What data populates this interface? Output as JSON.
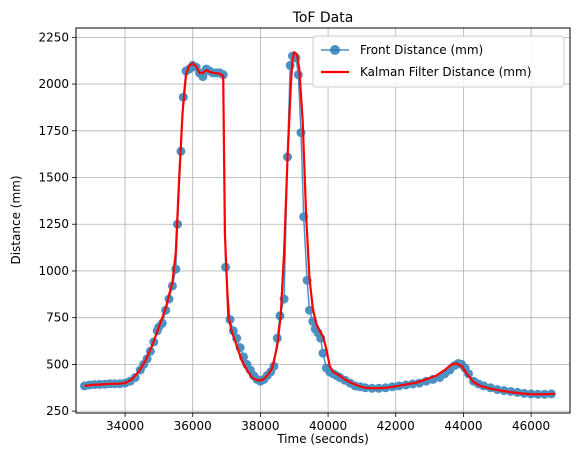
{
  "chart_data": {
    "type": "line",
    "title": "ToF Data",
    "xlabel": "Time (seconds)",
    "ylabel": "Distance (mm)",
    "xlim": [
      32550,
      47150
    ],
    "ylim": [
      240,
      2300
    ],
    "xticks": [
      34000,
      36000,
      38000,
      40000,
      42000,
      44000,
      46000
    ],
    "yticks": [
      250,
      500,
      750,
      1000,
      1250,
      1500,
      1750,
      2000,
      2250
    ],
    "grid": true,
    "legend_position": "top-right",
    "series": [
      {
        "name": "Front Distance (mm)",
        "style": "line-with-markers",
        "color": "#1f77b4",
        "x": [
          32800,
          32950,
          33100,
          33250,
          33400,
          33550,
          33700,
          33850,
          34000,
          34150,
          34300,
          34450,
          34550,
          34650,
          34750,
          34850,
          34950,
          35000,
          35100,
          35200,
          35300,
          35400,
          35500,
          35550,
          35650,
          35720,
          35800,
          35900,
          36000,
          36100,
          36200,
          36300,
          36400,
          36500,
          36600,
          36700,
          36800,
          36900,
          36970,
          37100,
          37200,
          37300,
          37400,
          37500,
          37600,
          37700,
          37800,
          37900,
          38000,
          38100,
          38200,
          38300,
          38400,
          38500,
          38580,
          38700,
          38800,
          38880,
          38950,
          39050,
          39120,
          39200,
          39280,
          39380,
          39450,
          39550,
          39620,
          39700,
          39780,
          39850,
          39950,
          40050,
          40150,
          40250,
          40350,
          40500,
          40650,
          40800,
          40950,
          41100,
          41300,
          41500,
          41700,
          41900,
          42100,
          42300,
          42500,
          42700,
          42900,
          43100,
          43300,
          43450,
          43600,
          43750,
          43850,
          43950,
          44050,
          44150,
          44300,
          44450,
          44600,
          44800,
          45000,
          45200,
          45400,
          45600,
          45800,
          46000,
          46200,
          46400,
          46600
        ],
        "y": [
          385,
          390,
          392,
          393,
          394,
          396,
          396,
          397,
          400,
          410,
          430,
          470,
          500,
          530,
          570,
          620,
          680,
          700,
          720,
          790,
          850,
          920,
          1010,
          1250,
          1640,
          1930,
          2070,
          2080,
          2100,
          2090,
          2060,
          2040,
          2080,
          2070,
          2060,
          2060,
          2060,
          2050,
          1020,
          740,
          680,
          640,
          590,
          540,
          500,
          470,
          440,
          420,
          410,
          420,
          440,
          460,
          490,
          640,
          760,
          850,
          1610,
          2100,
          2150,
          2140,
          2050,
          1740,
          1290,
          950,
          790,
          730,
          690,
          670,
          640,
          560,
          480,
          460,
          450,
          440,
          430,
          415,
          400,
          385,
          380,
          375,
          372,
          372,
          375,
          380,
          385,
          390,
          395,
          400,
          410,
          420,
          430,
          450,
          470,
          495,
          505,
          500,
          480,
          450,
          410,
          395,
          385,
          375,
          365,
          360,
          355,
          350,
          345,
          342,
          340,
          340,
          342
        ]
      },
      {
        "name": "Kalman Filter Distance (mm)",
        "style": "line",
        "color": "#ff0000",
        "x": [
          32800,
          33000,
          33200,
          33400,
          33600,
          33800,
          34000,
          34200,
          34400,
          34600,
          34800,
          35000,
          35200,
          35400,
          35500,
          35600,
          35700,
          35800,
          35900,
          36000,
          36100,
          36200,
          36300,
          36400,
          36500,
          36600,
          36700,
          36800,
          36900,
          36950,
          37050,
          37150,
          37300,
          37450,
          37600,
          37750,
          37900,
          38050,
          38200,
          38350,
          38500,
          38600,
          38700,
          38800,
          38900,
          38950,
          39000,
          39080,
          39150,
          39250,
          39350,
          39450,
          39550,
          39650,
          39750,
          39850,
          39950,
          40050,
          40150,
          40300,
          40500,
          40700,
          40900,
          41100,
          41400,
          41700,
          42000,
          42300,
          42600,
          42900,
          43200,
          43450,
          43650,
          43800,
          43950,
          44100,
          44300,
          44500,
          44800,
          45100,
          45400,
          45700,
          46000,
          46300,
          46700
        ],
        "y": [
          385,
          390,
          392,
          394,
          396,
          397,
          400,
          420,
          460,
          520,
          600,
          700,
          800,
          940,
          1100,
          1500,
          1850,
          2050,
          2100,
          2110,
          2095,
          2060,
          2060,
          2075,
          2065,
          2060,
          2058,
          2055,
          2045,
          1200,
          760,
          680,
          600,
          520,
          470,
          430,
          415,
          415,
          440,
          480,
          600,
          760,
          1100,
          1600,
          2000,
          2130,
          2170,
          2160,
          2080,
          1800,
          1300,
          960,
          800,
          720,
          680,
          650,
          580,
          490,
          460,
          445,
          420,
          400,
          385,
          375,
          372,
          375,
          383,
          393,
          402,
          420,
          440,
          470,
          500,
          505,
          490,
          450,
          405,
          385,
          370,
          360,
          352,
          345,
          340,
          340,
          342
        ]
      }
    ]
  }
}
